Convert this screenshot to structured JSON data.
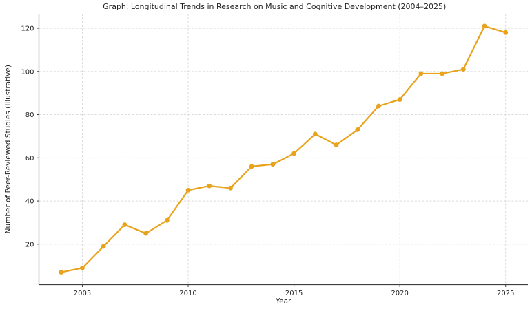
{
  "chart_data": {
    "type": "line",
    "title": "Graph. Longitudinal Trends in Research on Music and Cognitive Development (2004–2025)",
    "xlabel": "Year",
    "ylabel": "Number of Peer-Reviewed Studies (Illustrative)",
    "x": [
      2004,
      2005,
      2006,
      2007,
      2008,
      2009,
      2010,
      2011,
      2012,
      2013,
      2014,
      2015,
      2016,
      2017,
      2018,
      2019,
      2020,
      2021,
      2022,
      2023,
      2024,
      2025
    ],
    "y": [
      7,
      9,
      19,
      29,
      25,
      31,
      45,
      47,
      46,
      56,
      57,
      62,
      71,
      66,
      73,
      84,
      87,
      99,
      99,
      101,
      121,
      118
    ],
    "series_name": "Number of Peer-Reviewed Studies",
    "xticks": [
      2005,
      2010,
      2015,
      2020,
      2025
    ],
    "yticks": [
      20,
      40,
      60,
      80,
      100,
      120
    ],
    "xlim": [
      2002.95,
      2026.05
    ],
    "ylim": [
      1.3,
      126.7
    ],
    "grid": true,
    "marker": "circle",
    "legend": "none",
    "colors": {
      "line": "#E8A21C",
      "marker": "#E8A21C",
      "grid": "#d6d6d6",
      "spine": "#3d3d3d",
      "text": "#1f1f1f",
      "background": "#ffffff"
    }
  }
}
